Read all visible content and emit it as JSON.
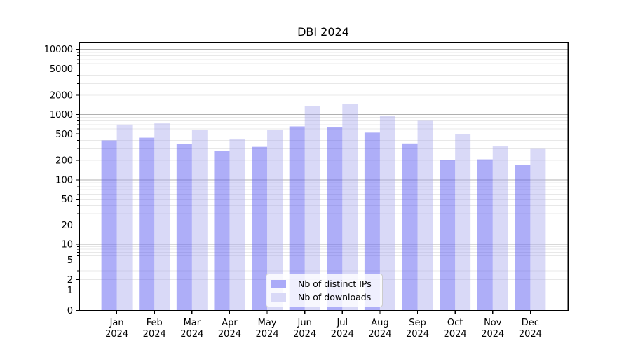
{
  "chart_data": {
    "type": "bar",
    "title": "DBI 2024",
    "categories": [
      "Jan 2024",
      "Feb 2024",
      "Mar 2024",
      "Apr 2024",
      "May 2024",
      "Jun 2024",
      "Jul 2024",
      "Aug 2024",
      "Sep 2024",
      "Oct 2024",
      "Nov 2024",
      "Dec 2024"
    ],
    "x_tick_month": [
      "Jan",
      "Feb",
      "Mar",
      "Apr",
      "May",
      "Jun",
      "Jul",
      "Aug",
      "Sep",
      "Oct",
      "Nov",
      "Dec"
    ],
    "x_tick_year": "2024",
    "series": [
      {
        "name": "Nb of distinct IPs",
        "color": "rgba(85,85,240,0.48)",
        "color_on_white": "#aaaaf8",
        "values": [
          400,
          440,
          350,
          275,
          320,
          655,
          640,
          525,
          360,
          200,
          207,
          170
        ]
      },
      {
        "name": "Nb of downloads",
        "color": "rgba(170,170,238,0.45)",
        "color_on_white": "#d9d9f7",
        "values": [
          700,
          730,
          580,
          425,
          578,
          1340,
          1460,
          960,
          800,
          500,
          325,
          298
        ]
      }
    ],
    "y_axis": {
      "scale": "symlog",
      "ticks": [
        0,
        1,
        2,
        5,
        10,
        20,
        50,
        100,
        200,
        500,
        1000,
        2000,
        5000,
        10000
      ],
      "range": [
        0,
        10000
      ]
    },
    "grid": {
      "major_color": "#b0b0b0",
      "minor_color": "#e8e8e8",
      "major_lines_at": [
        1,
        10,
        100,
        1000,
        10000
      ]
    },
    "legend": {
      "position": "lower center",
      "entries": [
        "Nb of distinct IPs",
        "Nb of downloads"
      ]
    },
    "colors": {
      "background": "#ffffff",
      "spine": "#000000",
      "text": "#000000"
    }
  }
}
